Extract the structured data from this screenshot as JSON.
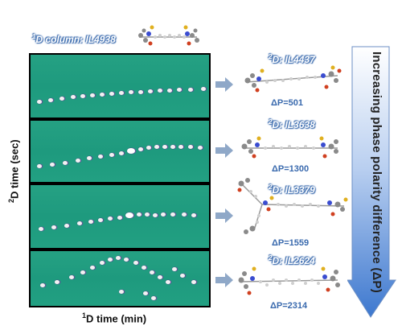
{
  "first_dim_column": {
    "sup": "1",
    "text": "D column: IL4938"
  },
  "second_dim_columns": [
    {
      "sup": "2",
      "text": "D: IL4437",
      "dp": "ΔP=501"
    },
    {
      "sup": "2",
      "text": "D: IL3638",
      "dp": "ΔP=1300"
    },
    {
      "sup": "2",
      "text": "D: IL3379",
      "dp": "ΔP=1559"
    },
    {
      "sup": "2",
      "text": "D: IL2624",
      "dp": "ΔP=2314"
    }
  ],
  "x_axis": {
    "sup": "1",
    "text": "D time (min)"
  },
  "y_axis": {
    "sup": "2",
    "text": "D time (sec)"
  },
  "trend_arrow": {
    "text": "Increasing phase polarity difference (ΔP)"
  },
  "colors": {
    "panel_bg": "#22a082",
    "accent_blue": "#3a6aae",
    "arrow_blue": "#5b8ed6"
  }
}
